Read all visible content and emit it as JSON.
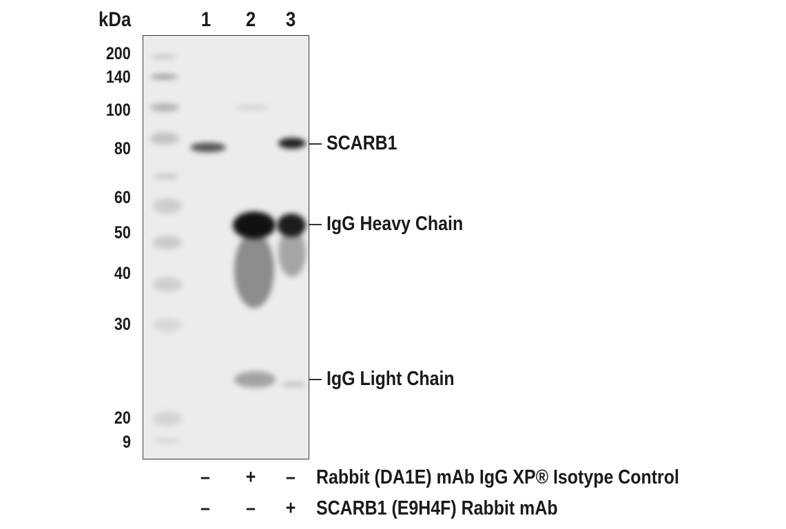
{
  "header": {
    "unit": "kDa",
    "lanes": [
      "1",
      "2",
      "3"
    ]
  },
  "markers": [
    "200",
    "140",
    "100",
    "80",
    "60",
    "50",
    "40",
    "30",
    "20",
    "9"
  ],
  "band_labels": [
    "SCARB1",
    "IgG Heavy Chain",
    "IgG Light Chain"
  ],
  "conditions": [
    {
      "label": "Rabbit (DA1E) mAb IgG XP® Isotype Control",
      "signs": [
        "–",
        "+",
        "–"
      ]
    },
    {
      "label": "SCARB1 (E9H4F) Rabbit mAb",
      "signs": [
        "–",
        "–",
        "+"
      ]
    }
  ]
}
